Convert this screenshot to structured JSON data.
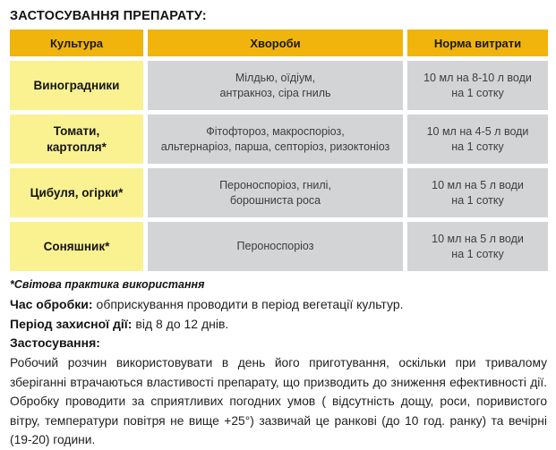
{
  "page": {
    "title": "ЗАСТОСУВАННЯ ПРЕПАРАТУ:"
  },
  "table": {
    "headers": [
      "Культура",
      "Хвороби",
      "Норма витрати"
    ],
    "rows": [
      {
        "culture": "Виноградники",
        "diseases": "Мілдью, оїдіум,\nантракноз, сіра гниль",
        "rate": "10 мл на 8-10 л води\nна 1 сотку"
      },
      {
        "culture": "Томати,\nкартопля*",
        "diseases": "Фітофтороз, макроспоріоз,\nальтернаріоз, парша, септоріоз, ризоктоніоз",
        "rate": "10 мл на 4-5 л води\nна 1 сотку"
      },
      {
        "culture": "Цибуля, огірки*",
        "diseases": "Пероноспоріоз, гнилі,\nборошниста роса",
        "rate": "10 мл на 5 л води\nна 1 сотку"
      },
      {
        "culture": "Соняшник*",
        "diseases": "Пероноспоріоз",
        "rate": "10 мл на 5 л води\nна 1 сотку"
      }
    ]
  },
  "footnote": "*Світова практика використання",
  "notes": {
    "treatment_time": {
      "label": "Час обробки:",
      "text": "обприскування проводити в період вегетації культур."
    },
    "protection_period": {
      "label": "Період захисної дії:",
      "text": "від 8 до 12 днів."
    }
  },
  "application": {
    "heading": "Застосування:",
    "body": "Робочий розчин використовувати в день його приготування, оскільки при тривалому зберіганні втрачаються властивості препарату, що призводить до зниження ефективності дії. Обробку проводити за сприятливих погодних умов ( відсутність дощу, роси, поривистого вітру, температури повітря не вище +25°) зазвичай це ранкові (до 10 год. ранку) та вечірні (19-20) години."
  },
  "colors": {
    "header_bg": "#F0B40D",
    "culture_bg": "#FAF291",
    "cell_bg": "#D3D4D6"
  }
}
